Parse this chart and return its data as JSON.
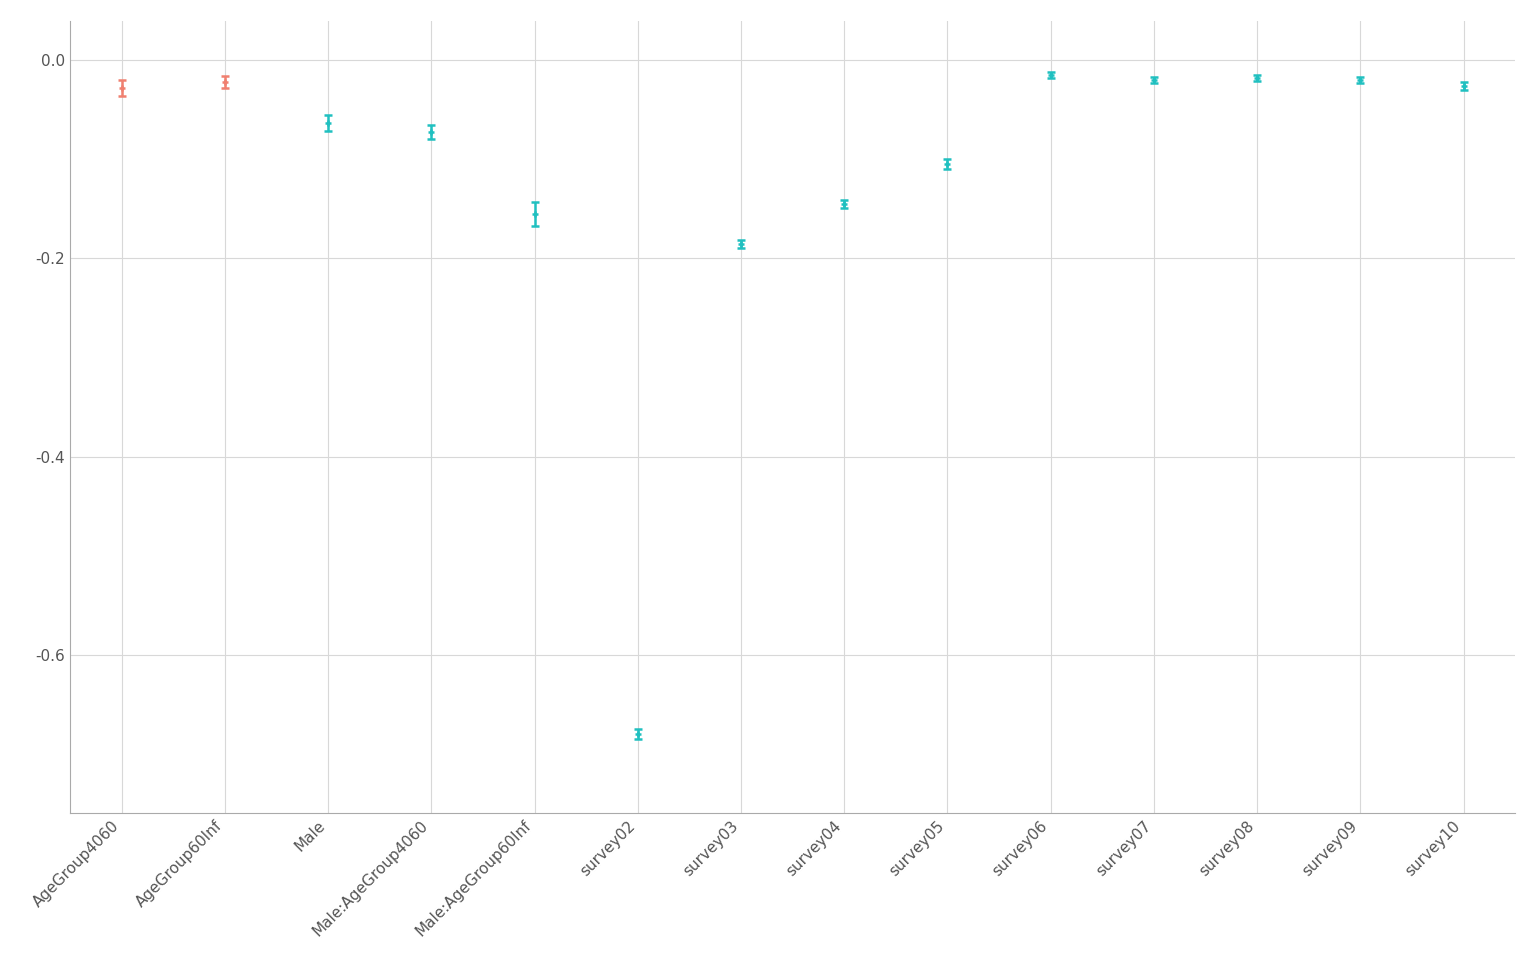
{
  "categories": [
    "AgeGroup4060",
    "AgeGroup60Inf",
    "Male",
    "Male:AgeGroup4060",
    "Male:AgeGroup60Inf",
    "survey02",
    "survey03",
    "survey04",
    "survey05",
    "survey06",
    "survey07",
    "survey08",
    "survey09",
    "survey10"
  ],
  "centers": [
    -0.028,
    -0.022,
    -0.063,
    -0.072,
    -0.155,
    -0.68,
    -0.185,
    -0.145,
    -0.105,
    -0.015,
    -0.02,
    -0.018,
    -0.02,
    -0.026
  ],
  "err_low": [
    0.008,
    0.006,
    0.008,
    0.007,
    0.012,
    0.005,
    0.004,
    0.004,
    0.005,
    0.003,
    0.003,
    0.003,
    0.003,
    0.004
  ],
  "err_high": [
    0.008,
    0.006,
    0.008,
    0.007,
    0.012,
    0.005,
    0.004,
    0.004,
    0.005,
    0.003,
    0.003,
    0.003,
    0.003,
    0.004
  ],
  "colors": [
    "#f08070",
    "#f08070",
    "#20c0c0",
    "#20c0c0",
    "#20c0c0",
    "#20c0c0",
    "#20c0c0",
    "#20c0c0",
    "#20c0c0",
    "#20c0c0",
    "#20c0c0",
    "#20c0c0",
    "#20c0c0",
    "#20c0c0"
  ],
  "ylim": [
    -0.76,
    0.04
  ],
  "yticks": [
    0.0,
    -0.2,
    -0.4,
    -0.6
  ],
  "background_color": "#ffffff",
  "grid_color": "#d8d8d8",
  "capsize": 3,
  "linewidth": 1.8,
  "markersize": 5
}
